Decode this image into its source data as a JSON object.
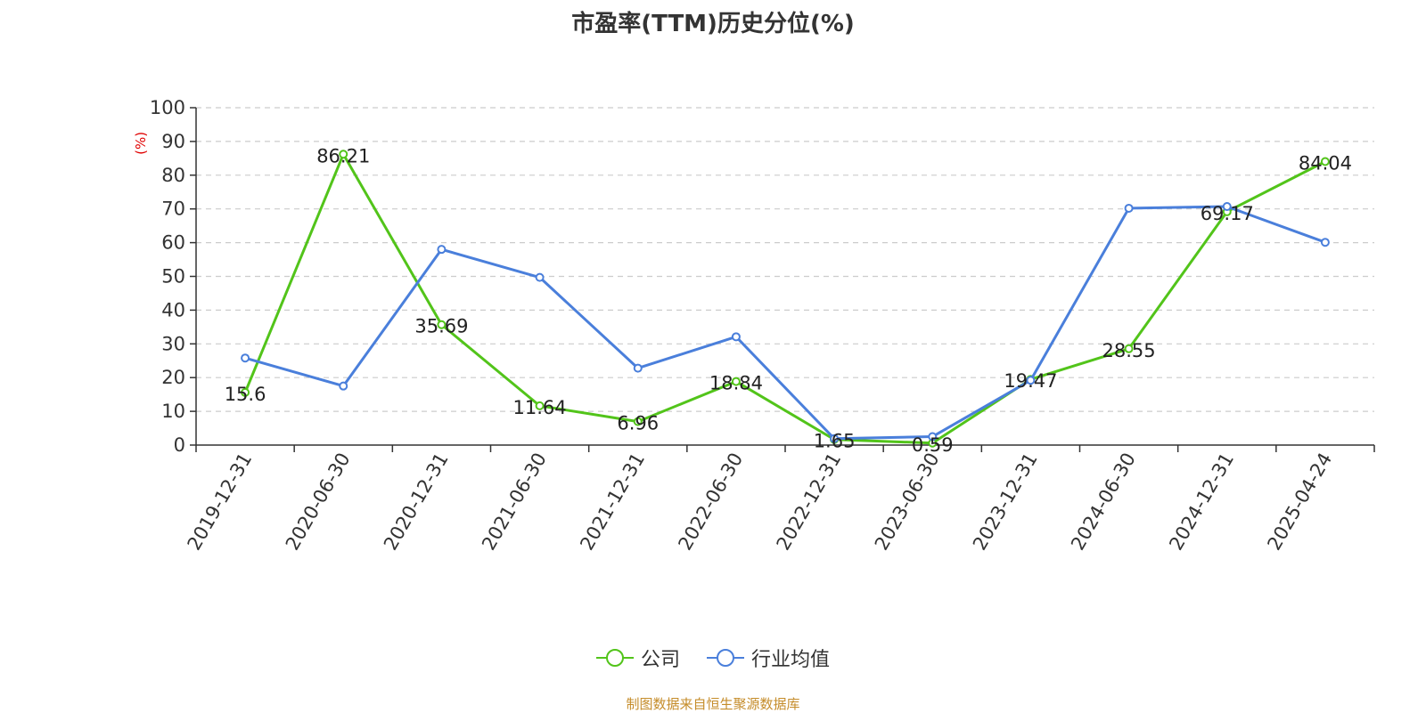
{
  "chart_data": {
    "type": "line",
    "title": "市盈率(TTM)历史分位(%)",
    "ylabel": "(%)",
    "xlabel": "",
    "ylim": [
      0,
      100
    ],
    "yticks": [
      0,
      10,
      20,
      30,
      40,
      50,
      60,
      70,
      80,
      90,
      100
    ],
    "grid": true,
    "legend_position": "bottom",
    "x": [
      "2019-12-31",
      "2020-06-30",
      "2020-12-31",
      "2021-06-30",
      "2021-12-31",
      "2022-06-30",
      "2022-12-31",
      "2023-06-30",
      "2023-12-31",
      "2024-06-30",
      "2024-12-31",
      "2025-04-24"
    ],
    "series": [
      {
        "name": "公司",
        "color": "#52c41a",
        "labeled": true,
        "values": [
          15.6,
          86.21,
          35.69,
          11.64,
          6.96,
          18.84,
          1.65,
          0.59,
          19.47,
          28.55,
          69.17,
          84.04
        ]
      },
      {
        "name": "行业均值",
        "color": "#4a7fdb",
        "labeled": false,
        "values": [
          25.8,
          17.5,
          58.0,
          49.7,
          22.8,
          32.1,
          1.9,
          2.5,
          19.2,
          70.2,
          70.7,
          60.1
        ]
      }
    ]
  },
  "source_note": "制图数据来自恒生聚源数据库"
}
